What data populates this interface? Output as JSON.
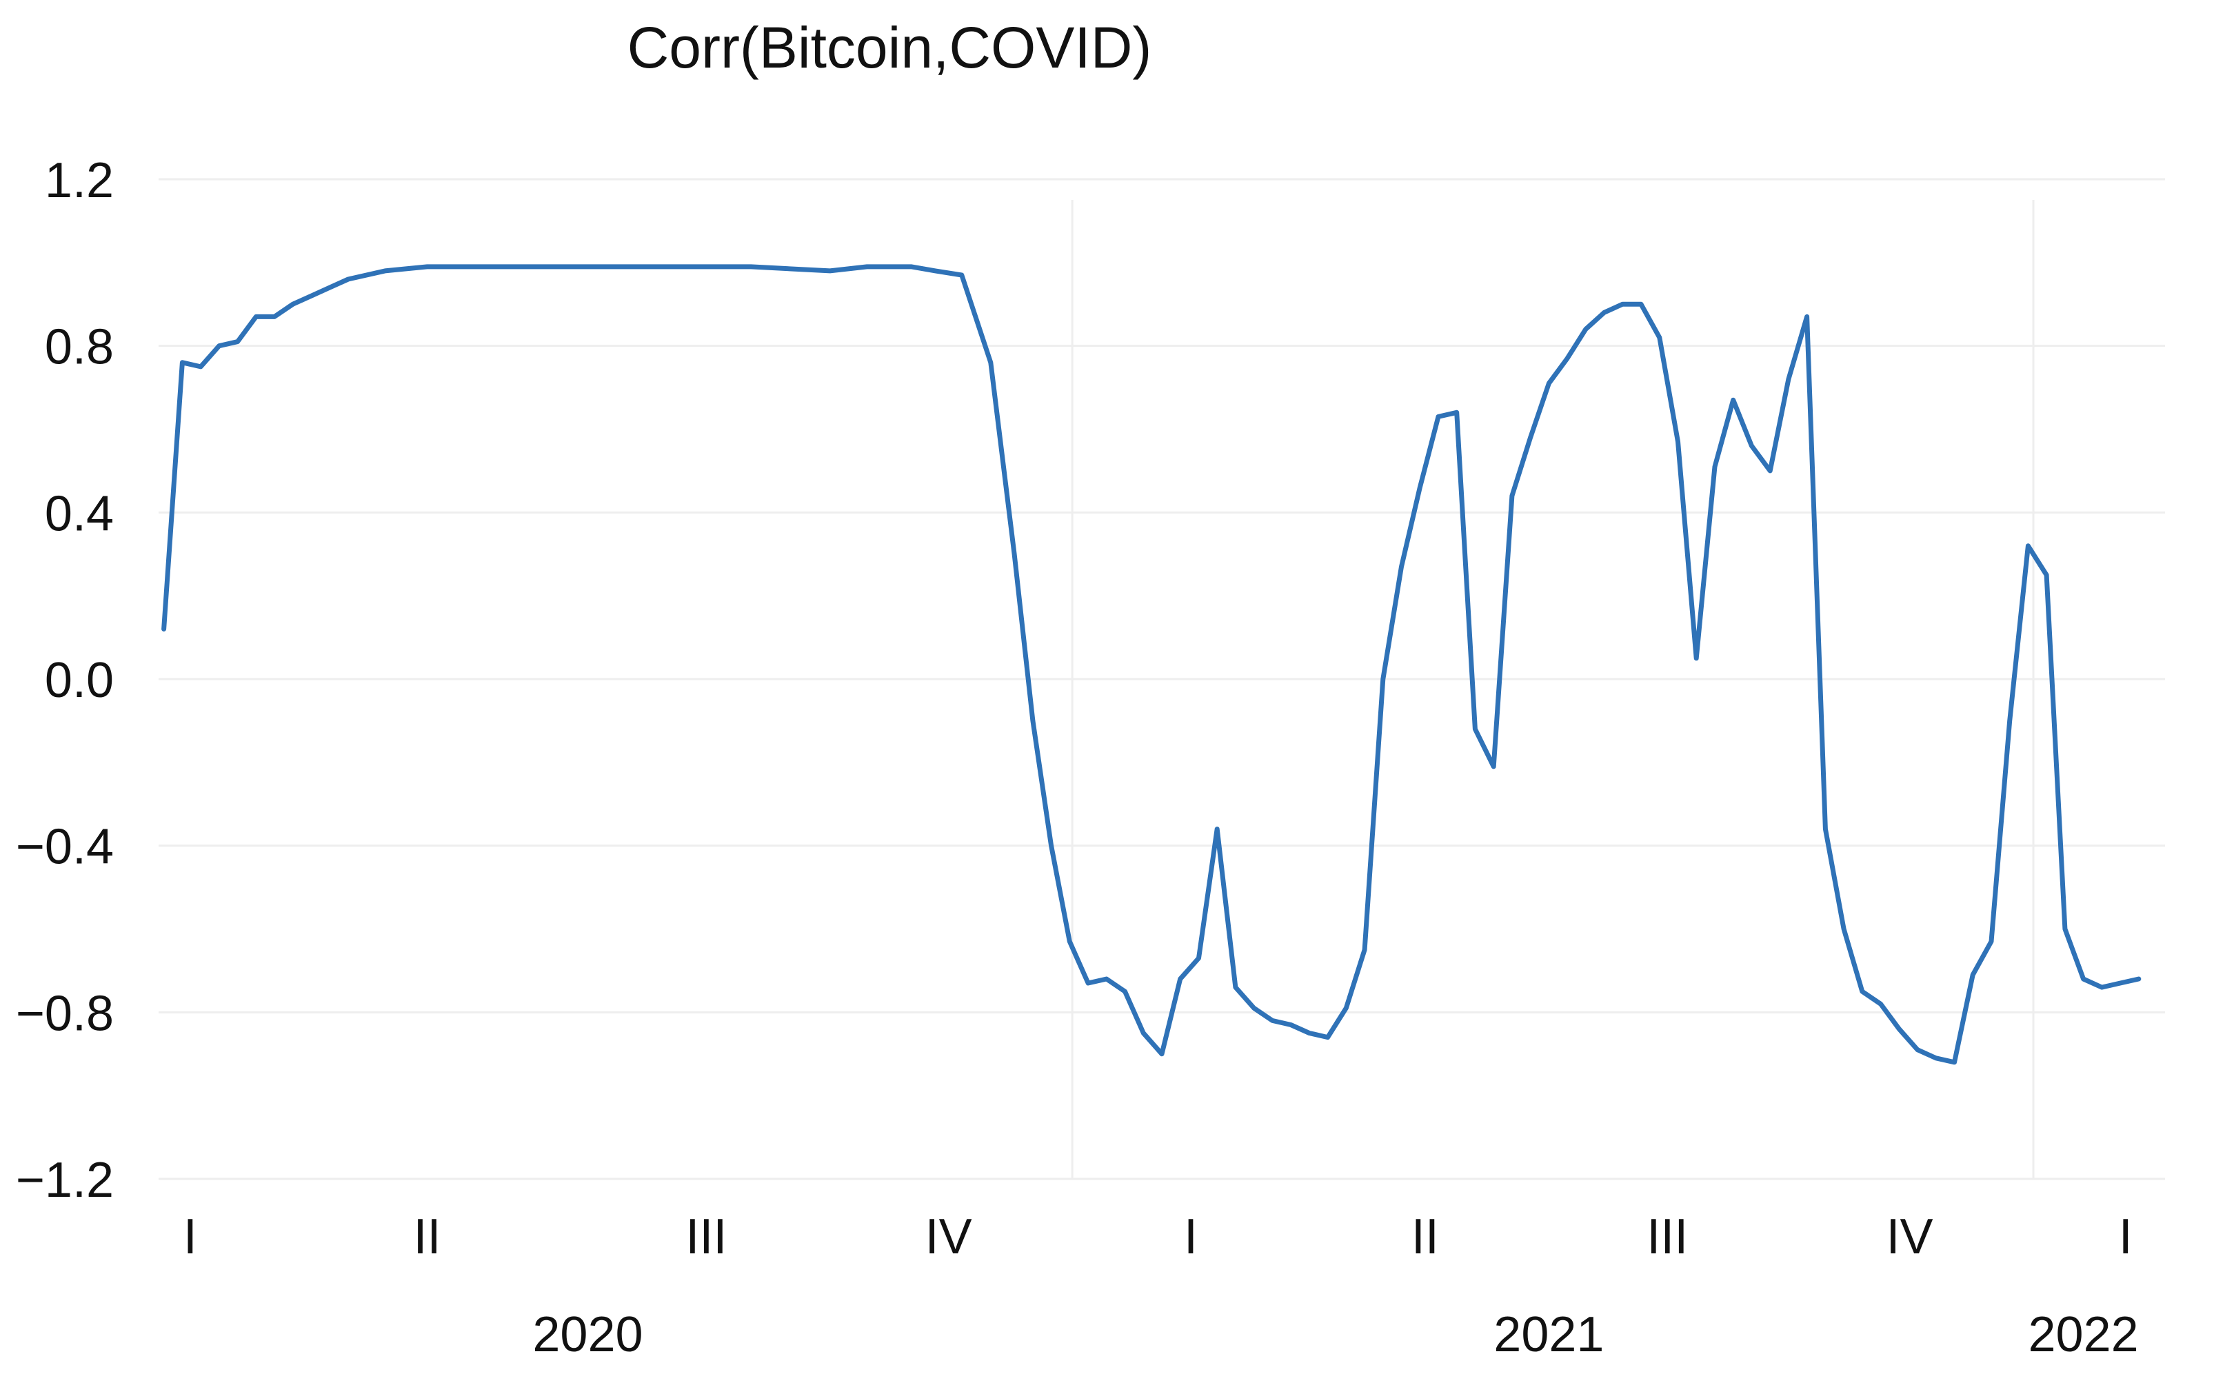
{
  "chart_data": {
    "type": "line",
    "title": "Corr(Bitcoin,COVID)",
    "xlabel": "",
    "ylabel": "",
    "ylim": [
      -1.2,
      1.2
    ],
    "yticks": [
      "1.2",
      "0.8",
      "0.4",
      "0.0",
      "−0.4",
      "−0.8",
      "−1.2"
    ],
    "ytick_values": [
      1.2,
      0.8,
      0.4,
      0.0,
      -0.4,
      -0.8,
      -1.2
    ],
    "xlim": [
      "2020-01-20",
      "2022-02-20"
    ],
    "quarter_ticks": [
      {
        "label": "I",
        "date": "2020-02-01"
      },
      {
        "label": "II",
        "date": "2020-05-01"
      },
      {
        "label": "III",
        "date": "2020-08-15"
      },
      {
        "label": "IV",
        "date": "2020-11-15"
      },
      {
        "label": "I",
        "date": "2021-02-15"
      },
      {
        "label": "II",
        "date": "2021-05-15"
      },
      {
        "label": "III",
        "date": "2021-08-15"
      },
      {
        "label": "IV",
        "date": "2021-11-15"
      },
      {
        "label": "I",
        "date": "2022-02-05"
      }
    ],
    "year_ticks": [
      {
        "label": "2020",
        "date": "2020-07-01"
      },
      {
        "label": "2021",
        "date": "2021-07-01"
      },
      {
        "label": "2022",
        "date": "2022-01-20"
      }
    ],
    "year_dividers": [
      "2021-01-01",
      "2022-01-01"
    ],
    "grid": true,
    "colors": {
      "series": "#2f72b7",
      "grid": "#eeeeee",
      "text": "#111111"
    },
    "series": [
      {
        "x": [
          "2020-01-22",
          "2020-01-29",
          "2020-02-05",
          "2020-02-12",
          "2020-02-19",
          "2020-02-26",
          "2020-03-04",
          "2020-03-11",
          "2020-03-18",
          "2020-03-25",
          "2020-04-01",
          "2020-04-15",
          "2020-05-01",
          "2020-05-15",
          "2020-06-01",
          "2020-07-01",
          "2020-08-01",
          "2020-09-01",
          "2020-10-01",
          "2020-10-15",
          "2020-11-01",
          "2020-11-10",
          "2020-11-20",
          "2020-12-01",
          "2020-12-10",
          "2020-12-17",
          "2020-12-24",
          "2020-12-31",
          "2021-01-07",
          "2021-01-14",
          "2021-01-21",
          "2021-01-28",
          "2021-02-04",
          "2021-02-11",
          "2021-02-18",
          "2021-02-25",
          "2021-03-04",
          "2021-03-11",
          "2021-03-18",
          "2021-03-25",
          "2021-04-01",
          "2021-04-08",
          "2021-04-15",
          "2021-04-22",
          "2021-04-29",
          "2021-05-06",
          "2021-05-13",
          "2021-05-20",
          "2021-05-27",
          "2021-06-03",
          "2021-06-10",
          "2021-06-17",
          "2021-06-24",
          "2021-07-01",
          "2021-07-08",
          "2021-07-15",
          "2021-07-22",
          "2021-07-29",
          "2021-08-05",
          "2021-08-12",
          "2021-08-19",
          "2021-08-26",
          "2021-09-02",
          "2021-09-09",
          "2021-09-16",
          "2021-09-23",
          "2021-09-30",
          "2021-10-07",
          "2021-10-14",
          "2021-10-21",
          "2021-10-28",
          "2021-11-04",
          "2021-11-11",
          "2021-11-18",
          "2021-11-25",
          "2021-12-02",
          "2021-12-09",
          "2021-12-16",
          "2021-12-23",
          "2021-12-30",
          "2022-01-06",
          "2022-01-13",
          "2022-01-20",
          "2022-01-27",
          "2022-02-03",
          "2022-02-10"
        ],
        "values": [
          0.12,
          0.76,
          0.75,
          0.8,
          0.81,
          0.87,
          0.87,
          0.9,
          0.92,
          0.94,
          0.96,
          0.98,
          0.99,
          0.99,
          0.99,
          0.99,
          0.99,
          0.99,
          0.98,
          0.99,
          0.99,
          0.98,
          0.97,
          0.76,
          0.3,
          -0.1,
          -0.4,
          -0.63,
          -0.73,
          -0.72,
          -0.75,
          -0.85,
          -0.9,
          -0.72,
          -0.67,
          -0.36,
          -0.74,
          -0.79,
          -0.82,
          -0.83,
          -0.85,
          -0.86,
          -0.79,
          -0.65,
          0.0,
          0.27,
          0.46,
          0.63,
          0.64,
          -0.12,
          -0.21,
          0.44,
          0.58,
          0.71,
          0.77,
          0.84,
          0.88,
          0.9,
          0.9,
          0.82,
          0.57,
          0.05,
          0.51,
          0.67,
          0.56,
          0.5,
          0.72,
          0.87,
          -0.36,
          -0.6,
          -0.75,
          -0.78,
          -0.84,
          -0.89,
          -0.91,
          -0.92,
          -0.71,
          -0.63,
          -0.1,
          0.32,
          0.25,
          -0.6,
          -0.72,
          -0.74,
          -0.73,
          -0.72
        ]
      }
    ]
  }
}
